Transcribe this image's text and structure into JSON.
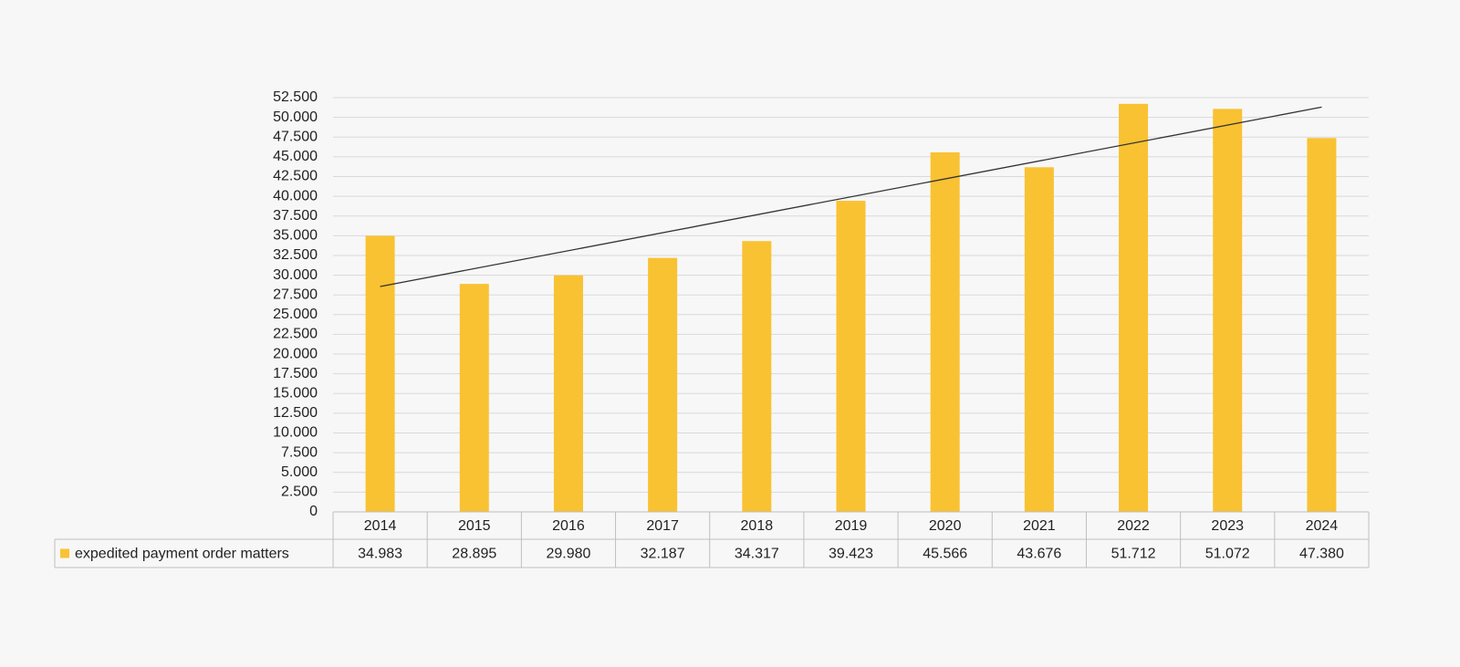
{
  "chart_data": {
    "type": "bar",
    "categories": [
      "2014",
      "2015",
      "2016",
      "2017",
      "2018",
      "2019",
      "2020",
      "2021",
      "2022",
      "2023",
      "2024"
    ],
    "series": [
      {
        "name": "expedited payment order matters",
        "color": "#f9c232",
        "values": [
          34983,
          28895,
          29980,
          32187,
          34317,
          39423,
          45566,
          43676,
          51712,
          51072,
          47380
        ],
        "value_labels": [
          "34.983",
          "28.895",
          "29.980",
          "32.187",
          "34.317",
          "39.423",
          "45.566",
          "43.676",
          "51.712",
          "51.072",
          "47.380"
        ]
      }
    ],
    "ylim": [
      0,
      52500
    ],
    "yticks": [
      0,
      {
        "value": 2500,
        "label": "2.500"
      },
      {
        "value": 5000,
        "label": "5.000"
      },
      {
        "value": 7500,
        "label": "7.500"
      },
      {
        "value": 10000,
        "label": "10.000"
      },
      {
        "value": 12500,
        "label": "12.500"
      },
      {
        "value": 15000,
        "label": "15.000"
      },
      {
        "value": 17500,
        "label": "17.500"
      },
      {
        "value": 20000,
        "label": "20.000"
      },
      {
        "value": 22500,
        "label": "22.500"
      },
      {
        "value": 25000,
        "label": "25.000"
      },
      {
        "value": 27500,
        "label": "27.500"
      },
      {
        "value": 30000,
        "label": "30.000"
      },
      {
        "value": 32500,
        "label": "32.500"
      },
      {
        "value": 35000,
        "label": "35.000"
      },
      {
        "value": 37500,
        "label": "37.500"
      },
      {
        "value": 40000,
        "label": "40.000"
      },
      {
        "value": 42500,
        "label": "42.500"
      },
      {
        "value": 45000,
        "label": "45.000"
      },
      {
        "value": 47500,
        "label": "47.500"
      },
      {
        "value": 50000,
        "label": "50.000"
      },
      {
        "value": 52500,
        "label": "52.500"
      }
    ],
    "grid": true,
    "trendline": true,
    "trendline_color": "#333333"
  }
}
